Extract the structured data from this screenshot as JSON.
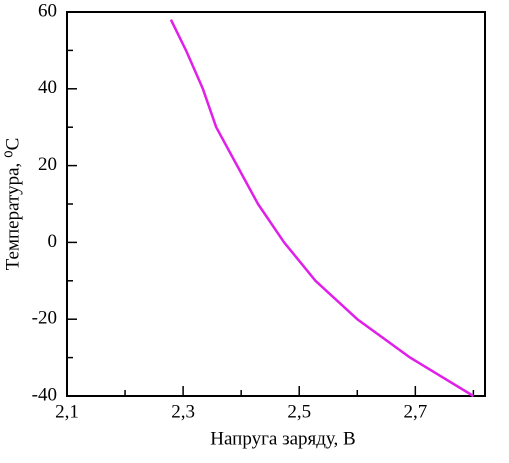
{
  "chart_data": {
    "type": "line",
    "xlabel": "Напруга заряду, В",
    "ylabel": "Температура, ⁰C",
    "x": [
      2.279,
      2.305,
      2.334,
      2.357,
      2.393,
      2.429,
      2.474,
      2.528,
      2.6,
      2.691,
      2.8
    ],
    "series": [
      {
        "color": "#e020e8",
        "values": [
          58,
          50,
          40,
          30,
          20,
          10,
          0,
          -10,
          -20,
          -30,
          -40
        ]
      }
    ],
    "xlim": [
      2.1,
      2.82
    ],
    "ylim": [
      -40,
      60
    ],
    "xticks": [
      {
        "value": 2.1,
        "label": "2,1"
      },
      {
        "value": 2.3,
        "label": "2,3"
      },
      {
        "value": 2.5,
        "label": "2,5"
      },
      {
        "value": 2.7,
        "label": "2,7"
      }
    ],
    "xminorticks": [
      2.2,
      2.4,
      2.6,
      2.8
    ],
    "yticks": [
      -40,
      -20,
      0,
      20,
      40,
      60
    ],
    "yminorticks": [
      -30,
      -10,
      10,
      30,
      50
    ]
  }
}
